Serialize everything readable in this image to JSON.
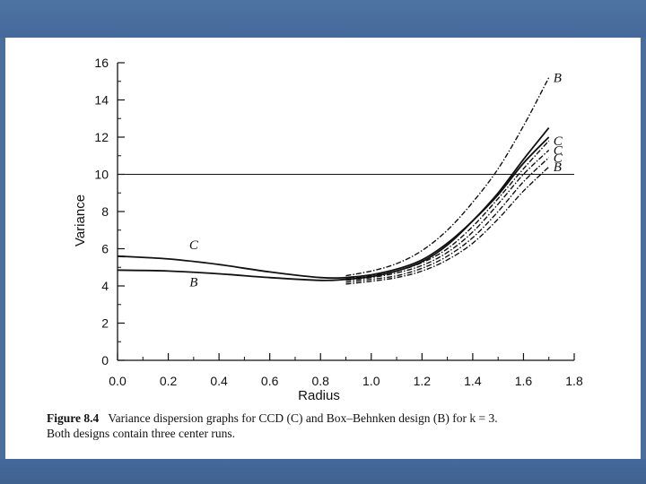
{
  "figure_caption": {
    "label": "Figure 8.4",
    "text": "Variance dispersion graphs for CCD (C) and Box–Behnken design (B) for k = 3.",
    "continuation": "Both designs contain three center runs."
  },
  "chart_data": {
    "type": "line",
    "xlabel": "Radius",
    "ylabel": "Variance",
    "xlim": [
      0.0,
      1.8
    ],
    "ylim": [
      0,
      16
    ],
    "x_ticks": [
      "0.0",
      "0.2",
      "0.4",
      "0.6",
      "0.8",
      "1.0",
      "1.2",
      "1.4",
      "1.6",
      "1.8"
    ],
    "y_ticks": [
      "0",
      "2",
      "4",
      "6",
      "8",
      "10",
      "12",
      "14",
      "16"
    ],
    "reference_line": {
      "y": 10
    },
    "grid": false,
    "series": [
      {
        "name": "C",
        "style": "solid",
        "label_position": "left",
        "x": [
          0.0,
          0.2,
          0.4,
          0.6,
          0.8,
          0.9,
          1.0,
          1.1,
          1.2,
          1.3,
          1.4,
          1.5,
          1.6,
          1.7
        ],
        "y": [
          5.6,
          5.45,
          5.15,
          4.75,
          4.45,
          4.45,
          4.6,
          4.9,
          5.4,
          6.3,
          7.5,
          8.9,
          10.6,
          12.0
        ]
      },
      {
        "name": "B",
        "style": "solid",
        "label_position": "left",
        "x": [
          0.0,
          0.2,
          0.4,
          0.6,
          0.8,
          0.9,
          1.0,
          1.1,
          1.2,
          1.3,
          1.4,
          1.5,
          1.6,
          1.7
        ],
        "y": [
          4.85,
          4.8,
          4.65,
          4.45,
          4.3,
          4.35,
          4.5,
          4.8,
          5.3,
          6.2,
          7.5,
          9.0,
          10.8,
          12.5
        ]
      },
      {
        "name": "B",
        "style": "dashdot",
        "label_position": "right",
        "x": [
          0.9,
          1.0,
          1.1,
          1.2,
          1.3,
          1.4,
          1.5,
          1.6,
          1.7
        ],
        "y": [
          4.55,
          4.8,
          5.2,
          5.9,
          7.0,
          8.5,
          10.3,
          12.6,
          15.2
        ]
      },
      {
        "name": "C",
        "style": "dashdot",
        "label_position": "right",
        "x": [
          0.9,
          1.0,
          1.1,
          1.2,
          1.3,
          1.4,
          1.5,
          1.6,
          1.7
        ],
        "y": [
          4.4,
          4.55,
          4.8,
          5.25,
          6.0,
          7.2,
          8.7,
          10.3,
          11.8
        ]
      },
      {
        "name": "C",
        "style": "dashdot",
        "label_position": "right",
        "x": [
          0.9,
          1.0,
          1.1,
          1.2,
          1.3,
          1.4,
          1.5,
          1.6,
          1.7
        ],
        "y": [
          4.3,
          4.45,
          4.7,
          5.1,
          5.8,
          6.9,
          8.4,
          10.0,
          11.3
        ]
      },
      {
        "name": "C",
        "style": "dashdot",
        "label_position": "right",
        "x": [
          0.9,
          1.0,
          1.1,
          1.2,
          1.3,
          1.4,
          1.5,
          1.6,
          1.7
        ],
        "y": [
          4.2,
          4.35,
          4.55,
          4.95,
          5.6,
          6.6,
          8.0,
          9.6,
          10.9
        ]
      },
      {
        "name": "B",
        "style": "dashdot",
        "label_position": "right",
        "x": [
          0.9,
          1.0,
          1.1,
          1.2,
          1.3,
          1.4,
          1.5,
          1.6,
          1.7
        ],
        "y": [
          4.1,
          4.25,
          4.45,
          4.8,
          5.4,
          6.3,
          7.6,
          9.1,
          10.4
        ]
      }
    ]
  }
}
